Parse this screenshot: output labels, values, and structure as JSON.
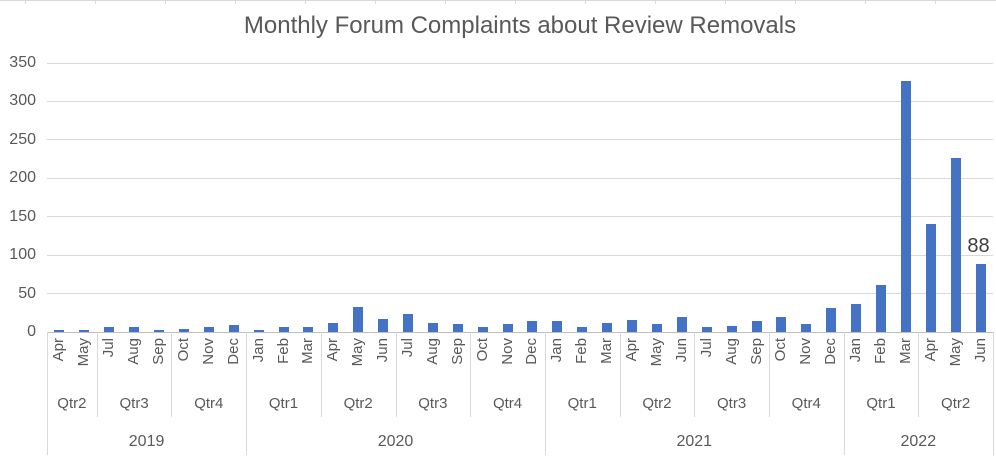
{
  "chart_data": {
    "type": "bar",
    "title": "Monthly Forum Complaints about Review Removals",
    "xlabel": "",
    "ylabel": "",
    "ylim": [
      0,
      350
    ],
    "yticks": [
      0,
      50,
      100,
      150,
      200,
      250,
      300,
      350
    ],
    "grid": "horizontal",
    "legend": "none",
    "bar_color": "#4472C4",
    "grid_color": "#D9D9D9",
    "axis_color": "#BFBFBF",
    "text_color": "#595959",
    "data_label_color": "#404040",
    "groups": [
      {
        "year": "2019",
        "quarters": [
          {
            "label": "Qtr2",
            "months": [
              {
                "name": "Apr",
                "value": 2
              },
              {
                "name": "May",
                "value": 3
              }
            ]
          },
          {
            "label": "Qtr3",
            "months": [
              {
                "name": "Jul",
                "value": 7
              },
              {
                "name": "Aug",
                "value": 6
              },
              {
                "name": "Sep",
                "value": 2
              }
            ]
          },
          {
            "label": "Qtr4",
            "months": [
              {
                "name": "Oct",
                "value": 4
              },
              {
                "name": "Nov",
                "value": 6
              },
              {
                "name": "Dec",
                "value": 9
              }
            ]
          }
        ]
      },
      {
        "year": "2020",
        "quarters": [
          {
            "label": "Qtr1",
            "months": [
              {
                "name": "Jan",
                "value": 3
              },
              {
                "name": "Feb",
                "value": 7
              },
              {
                "name": "Mar",
                "value": 7
              }
            ]
          },
          {
            "label": "Qtr2",
            "months": [
              {
                "name": "Apr",
                "value": 12
              },
              {
                "name": "May",
                "value": 32
              },
              {
                "name": "Jun",
                "value": 17
              }
            ]
          },
          {
            "label": "Qtr3",
            "months": [
              {
                "name": "Jul",
                "value": 23
              },
              {
                "name": "Aug",
                "value": 12
              },
              {
                "name": "Sep",
                "value": 11
              }
            ]
          },
          {
            "label": "Qtr4",
            "months": [
              {
                "name": "Oct",
                "value": 6
              },
              {
                "name": "Nov",
                "value": 10
              },
              {
                "name": "Dec",
                "value": 14
              }
            ]
          }
        ]
      },
      {
        "year": "2021",
        "quarters": [
          {
            "label": "Qtr1",
            "months": [
              {
                "name": "Jan",
                "value": 14
              },
              {
                "name": "Feb",
                "value": 7
              },
              {
                "name": "Mar",
                "value": 12
              }
            ]
          },
          {
            "label": "Qtr2",
            "months": [
              {
                "name": "Apr",
                "value": 16
              },
              {
                "name": "May",
                "value": 10
              },
              {
                "name": "Jun",
                "value": 20
              }
            ]
          },
          {
            "label": "Qtr3",
            "months": [
              {
                "name": "Jul",
                "value": 6
              },
              {
                "name": "Aug",
                "value": 8
              },
              {
                "name": "Sep",
                "value": 14
              }
            ]
          },
          {
            "label": "Qtr4",
            "months": [
              {
                "name": "Oct",
                "value": 19
              },
              {
                "name": "Nov",
                "value": 10
              },
              {
                "name": "Dec",
                "value": 31
              }
            ]
          }
        ]
      },
      {
        "year": "2022",
        "quarters": [
          {
            "label": "Qtr1",
            "months": [
              {
                "name": "Jan",
                "value": 36
              },
              {
                "name": "Feb",
                "value": 61
              },
              {
                "name": "Mar",
                "value": 327
              }
            ]
          },
          {
            "label": "Qtr2",
            "months": [
              {
                "name": "Apr",
                "value": 140
              },
              {
                "name": "May",
                "value": 226
              },
              {
                "name": "Jun",
                "value": 88,
                "label": "88"
              }
            ]
          }
        ]
      }
    ]
  }
}
